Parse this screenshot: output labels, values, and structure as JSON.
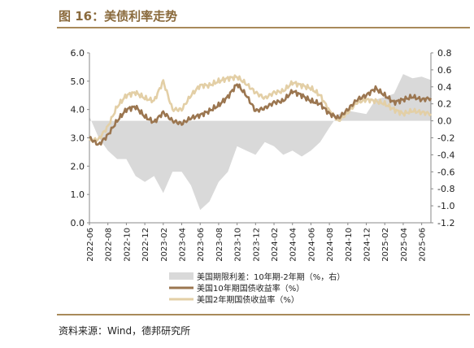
{
  "figure": {
    "title": "图 16：美债利率走势",
    "source": "资料来源：Wind，德邦研究所"
  },
  "chart_data": {
    "type": "line",
    "ylim": [
      0,
      6
    ],
    "y2lim": [
      -1.2,
      0.8
    ],
    "y_ticks": [
      "0.0",
      "1.0",
      "2.0",
      "3.0",
      "4.0",
      "5.0",
      "6.0"
    ],
    "y2_ticks": [
      "-1.2",
      "-1.0",
      "-0.8",
      "-0.6",
      "-0.4",
      "-0.2",
      "0.0",
      "0.2",
      "0.4",
      "0.6",
      "0.8"
    ],
    "x_ticks": [
      "2022-06",
      "2022-08",
      "2022-10",
      "2022-12",
      "2023-02",
      "2023-04",
      "2023-06",
      "2023-08",
      "2023-10",
      "2023-12",
      "2024-02",
      "2024-04",
      "2024-06",
      "2024-08",
      "2024-10",
      "2024-12",
      "2025-02",
      "2025-04",
      "2025-06"
    ],
    "legend_position": "bottom",
    "colors": {
      "spread": "#d9d9d9",
      "y10": "#9b7650",
      "y2": "#e3cfa6"
    },
    "series": [
      {
        "name": "美国期限利差：10年期-2年期（%，右）",
        "axis": "right",
        "kind": "area",
        "x": [
          "2022-06",
          "2022-07",
          "2022-08",
          "2022-09",
          "2022-10",
          "2022-11",
          "2022-12",
          "2023-01",
          "2023-02",
          "2023-03",
          "2023-04",
          "2023-05",
          "2023-06",
          "2023-07",
          "2023-08",
          "2023-09",
          "2023-10",
          "2023-11",
          "2023-12",
          "2024-01",
          "2024-02",
          "2024-03",
          "2024-04",
          "2024-05",
          "2024-06",
          "2024-07",
          "2024-08",
          "2024-09",
          "2024-10",
          "2024-12",
          "2025-01",
          "2025-02",
          "2025-03",
          "2025-04",
          "2025-05",
          "2025-06",
          "2025-07"
        ],
        "values": [
          0.05,
          -0.2,
          -0.35,
          -0.45,
          -0.45,
          -0.65,
          -0.72,
          -0.65,
          -0.85,
          -0.6,
          -0.6,
          -0.76,
          -1.05,
          -0.95,
          -0.72,
          -0.6,
          -0.3,
          -0.35,
          -0.4,
          -0.25,
          -0.3,
          -0.4,
          -0.35,
          -0.42,
          -0.35,
          -0.25,
          -0.08,
          0.08,
          0.12,
          0.08,
          0.25,
          0.28,
          0.32,
          0.55,
          0.5,
          0.52,
          0.48
        ]
      },
      {
        "name": "美国10年期国债收益率（%）",
        "axis": "left",
        "kind": "line",
        "x": [
          "2022-06",
          "2022-07",
          "2022-08",
          "2022-09",
          "2022-10",
          "2022-11",
          "2022-12",
          "2023-01",
          "2023-02",
          "2023-03",
          "2023-04",
          "2023-05",
          "2023-06",
          "2023-07",
          "2023-08",
          "2023-09",
          "2023-10",
          "2023-11",
          "2023-12",
          "2024-01",
          "2024-02",
          "2024-03",
          "2024-04",
          "2024-05",
          "2024-06",
          "2024-07",
          "2024-08",
          "2024-09",
          "2024-10",
          "2024-11",
          "2024-12",
          "2025-01",
          "2025-02",
          "2025-03",
          "2025-04",
          "2025-05",
          "2025-06",
          "2025-07"
        ],
        "values": [
          3.0,
          2.75,
          3.1,
          3.6,
          4.0,
          4.1,
          3.75,
          3.55,
          3.9,
          3.6,
          3.5,
          3.7,
          3.8,
          3.95,
          4.15,
          4.45,
          4.9,
          4.5,
          3.95,
          4.05,
          4.25,
          4.3,
          4.65,
          4.5,
          4.3,
          4.2,
          3.85,
          3.7,
          4.0,
          4.35,
          4.5,
          4.75,
          4.5,
          4.25,
          4.35,
          4.45,
          4.35,
          4.4
        ]
      },
      {
        "name": "美国2年期国债收益率（%）",
        "axis": "left",
        "kind": "line",
        "x": [
          "2022-06",
          "2022-07",
          "2022-08",
          "2022-09",
          "2022-10",
          "2022-11",
          "2022-12",
          "2023-01",
          "2023-02",
          "2023-03",
          "2023-04",
          "2023-05",
          "2023-06",
          "2023-07",
          "2023-08",
          "2023-09",
          "2023-10",
          "2023-11",
          "2023-12",
          "2024-01",
          "2024-02",
          "2024-03",
          "2024-04",
          "2024-05",
          "2024-06",
          "2024-07",
          "2024-08",
          "2024-09",
          "2024-10",
          "2024-11",
          "2024-12",
          "2025-01",
          "2025-02",
          "2025-03",
          "2025-04",
          "2025-05",
          "2025-06",
          "2025-07"
        ],
        "values": [
          2.9,
          2.95,
          3.4,
          4.1,
          4.5,
          4.6,
          4.4,
          4.3,
          5.0,
          4.0,
          4.0,
          4.5,
          4.85,
          4.85,
          5.0,
          5.1,
          5.15,
          4.9,
          4.6,
          4.4,
          4.6,
          4.65,
          4.95,
          4.85,
          4.75,
          4.5,
          3.95,
          3.6,
          3.9,
          4.25,
          4.35,
          4.3,
          4.2,
          4.0,
          3.85,
          3.95,
          3.9,
          3.85
        ]
      }
    ]
  }
}
